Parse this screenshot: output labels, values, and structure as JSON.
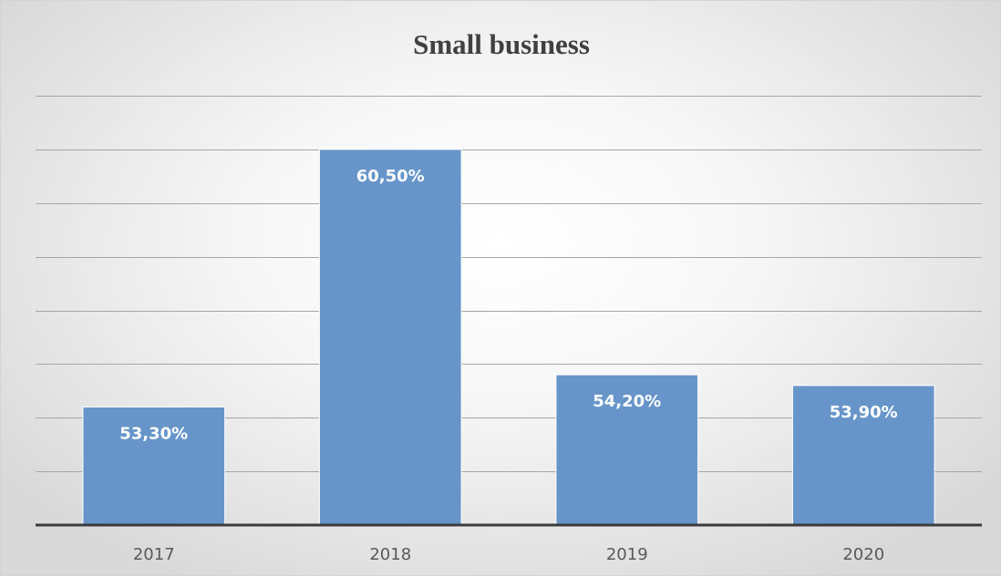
{
  "chart_data": {
    "type": "bar",
    "title": "Small business",
    "xlabel": "",
    "ylabel": "",
    "categories": [
      "2017",
      "2018",
      "2019",
      "2020"
    ],
    "values": [
      53.3,
      60.5,
      54.2,
      53.9
    ],
    "data_labels": [
      "53,30%",
      "60,50%",
      "54,20%",
      "53,90%"
    ],
    "ylim": [
      50,
      62
    ],
    "y_gridline_step": 1.5,
    "y_tick_labels_shown": false,
    "grid": true,
    "legend": "none",
    "colors": {
      "bar": "#6795c9",
      "bar_edge": "#ffffff",
      "grid": "#a6a6a6",
      "axis": "#3b3b3b",
      "title": "#404040",
      "tick_label": "#595959",
      "data_label": "#ffffff"
    }
  }
}
